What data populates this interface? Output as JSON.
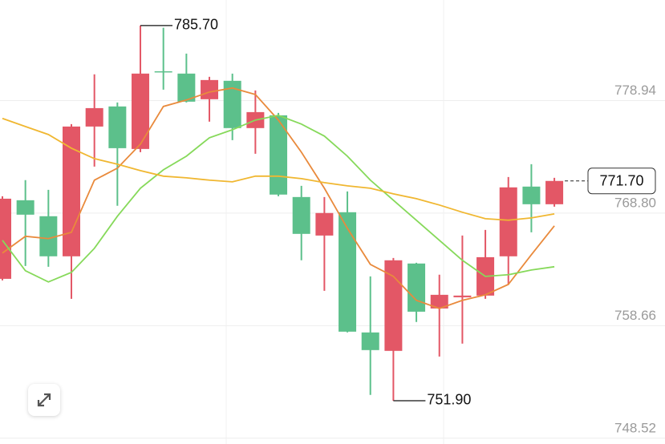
{
  "chart_data": {
    "type": "candlestick",
    "up_color": "#e35766",
    "down_color": "#5cc08b",
    "ylim": [
      748.0,
      788.0
    ],
    "yticks": [
      778.94,
      {
        "value": 768.8,
        "label": "768.80"
      },
      758.66,
      748.52
    ],
    "grid": true,
    "open": [
      762.88,
      769.96,
      768.52,
      764.91,
      776.6,
      778.41,
      774.58,
      781.58,
      781.37,
      779.06,
      780.72,
      776.46,
      777.61,
      770.25,
      766.78,
      768.88,
      758.05,
      756.39,
      764.26,
      760.21,
      761.22,
      761.37,
      764.91,
      771.19,
      769.6
    ],
    "high": [
      770.32,
      771.77,
      770.9,
      776.82,
      781.3,
      778.77,
      785.7,
      785.5,
      783.17,
      781.08,
      781.37,
      779.85,
      777.83,
      771.26,
      770.25,
      770.75,
      763.1,
      764.76,
      764.33,
      763.25,
      766.78,
      767.29,
      772.05,
      773.21,
      771.98
    ],
    "low": [
      762.74,
      764.04,
      763.97,
      761.08,
      772.99,
      769.46,
      774.29,
      779.92,
      778.77,
      777.04,
      775.37,
      774.15,
      770.32,
      764.55,
      761.8,
      758.05,
      752.42,
      751.9,
      758.99,
      755.88,
      757.04,
      761.08,
      762.38,
      767.07,
      769.38
    ],
    "close": [
      770.1,
      768.66,
      764.91,
      776.6,
      778.26,
      774.65,
      781.37,
      781.51,
      778.84,
      780.79,
      776.46,
      777.9,
      770.47,
      766.93,
      768.81,
      758.12,
      756.46,
      764.55,
      759.92,
      761.44,
      761.37,
      764.83,
      771.12,
      769.6,
      771.7
    ],
    "moving_averages": [
      {
        "color": "#e98a3c",
        "values": [
          765.2,
          766.71,
          766.5,
          767.07,
          771.77,
          772.85,
          775.01,
          778.41,
          778.99,
          779.71,
          780.07,
          779.49,
          777.18,
          774.29,
          771.04,
          767.43,
          764.18,
          763.1,
          760.94,
          760.21,
          760.94,
          761.44,
          762.38,
          765.05,
          767.65
        ]
      },
      {
        "color": "#86d95a",
        "values": [
          766.35,
          763.61,
          762.6,
          763.46,
          765.63,
          768.52,
          771.04,
          772.7,
          773.93,
          775.59,
          776.31,
          777.18,
          777.61,
          776.82,
          775.74,
          773.93,
          771.77,
          769.96,
          768.16,
          766.35,
          764.55,
          763.1,
          763.25,
          763.68,
          763.97
        ]
      },
      {
        "color": "#f0b731",
        "values": [
          777.33,
          776.6,
          775.88,
          774.65,
          773.71,
          773.21,
          772.63,
          772.13,
          771.98,
          771.77,
          771.62,
          772.13,
          772.13,
          771.91,
          771.55,
          771.26,
          771.04,
          770.54,
          770.1,
          769.53,
          768.88,
          768.3,
          768.16,
          768.37,
          768.73
        ]
      }
    ],
    "high_marker": {
      "value": 785.7,
      "label": "785.70"
    },
    "low_marker": {
      "value": 751.9,
      "label": "751.90"
    },
    "last_price": {
      "value": 771.7,
      "label": "771.70"
    }
  }
}
